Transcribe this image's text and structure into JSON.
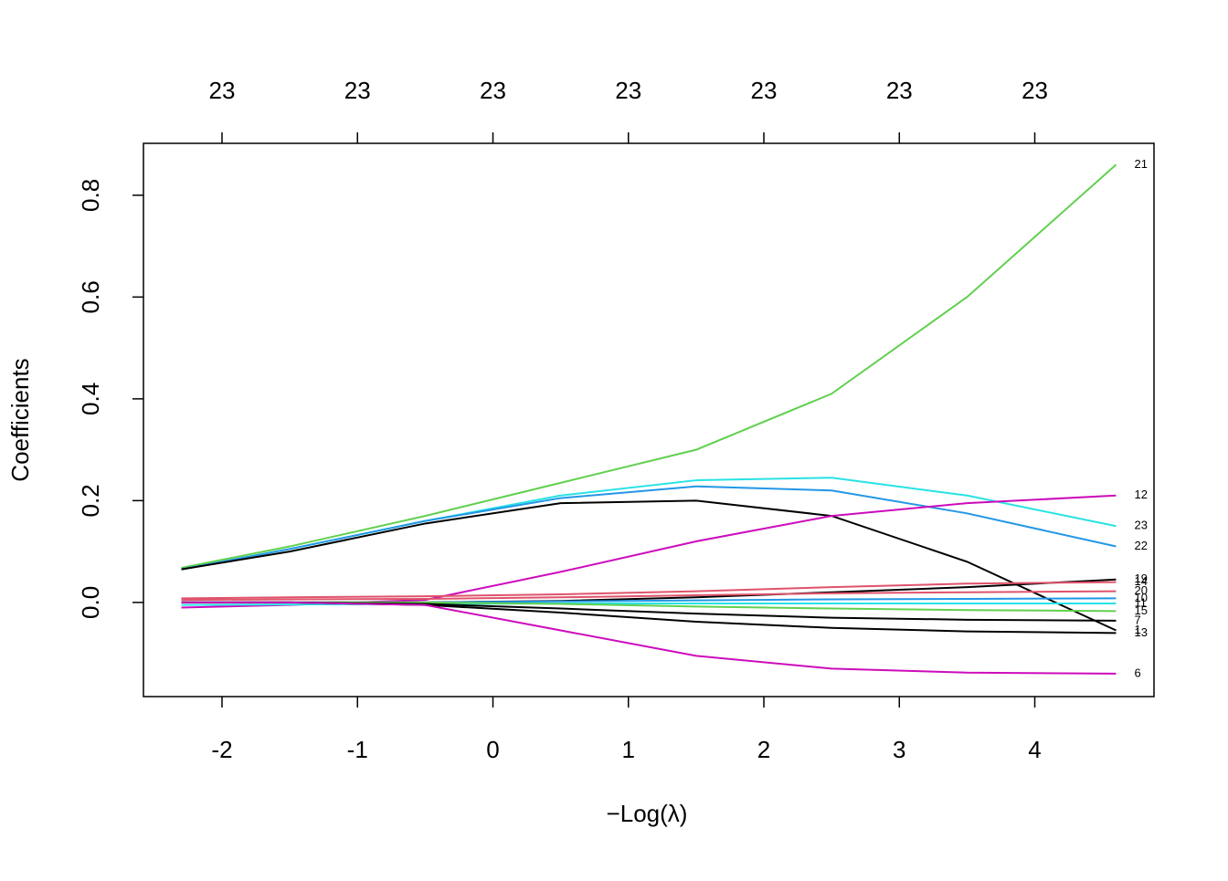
{
  "chart_data": {
    "type": "line",
    "xlabel": "−Log(λ)",
    "ylabel": "Coefficients",
    "x": [
      -2.3,
      -1.5,
      -0.5,
      0.5,
      1.5,
      2.5,
      3.5,
      4.6
    ],
    "series": [
      {
        "name": "21",
        "color": "#61D04F",
        "values": [
          0.068,
          0.11,
          0.17,
          0.235,
          0.3,
          0.41,
          0.6,
          0.86
        ]
      },
      {
        "name": "23",
        "color": "#28E2E5",
        "values": [
          0.065,
          0.105,
          0.16,
          0.21,
          0.24,
          0.245,
          0.21,
          0.15
        ]
      },
      {
        "name": "22",
        "color": "#2297E6",
        "values": [
          0.065,
          0.105,
          0.16,
          0.205,
          0.228,
          0.22,
          0.175,
          0.11
        ]
      },
      {
        "name": "1",
        "color": "#000000",
        "values": [
          0.065,
          0.1,
          0.155,
          0.195,
          0.2,
          0.17,
          0.08,
          -0.055
        ]
      },
      {
        "name": "12",
        "color": "#CD0BBC",
        "values": [
          -0.01,
          -0.005,
          0.005,
          0.06,
          0.12,
          0.17,
          0.195,
          0.21
        ]
      },
      {
        "name": "19",
        "color": "#000000",
        "values": [
          0,
          0,
          0,
          0.003,
          0.01,
          0.02,
          0.03,
          0.045
        ]
      },
      {
        "name": "14",
        "color": "#DF536B",
        "values": [
          0.008,
          0.01,
          0.012,
          0.016,
          0.022,
          0.03,
          0.037,
          0.04
        ]
      },
      {
        "name": "20",
        "color": "#DF536B",
        "values": [
          0.005,
          0.006,
          0.007,
          0.01,
          0.014,
          0.018,
          0.02,
          0.022
        ]
      },
      {
        "name": "10",
        "color": "#2297E6",
        "values": [
          0,
          0,
          0,
          0.002,
          0.004,
          0.006,
          0.007,
          0.008
        ]
      },
      {
        "name": "11",
        "color": "#28E2E5",
        "values": [
          -0.005,
          -0.004,
          -0.003,
          -0.002,
          -0.002,
          -0.002,
          -0.002,
          -0.002
        ]
      },
      {
        "name": "15",
        "color": "#61D04F",
        "values": [
          0,
          0,
          0,
          -0.003,
          -0.008,
          -0.012,
          -0.015,
          -0.017
        ]
      },
      {
        "name": "7",
        "color": "#000000",
        "values": [
          0,
          0,
          -0.003,
          -0.012,
          -0.022,
          -0.03,
          -0.034,
          -0.036
        ]
      },
      {
        "name": "13",
        "color": "#000000",
        "values": [
          0,
          0,
          -0.005,
          -0.02,
          -0.038,
          -0.05,
          -0.057,
          -0.06
        ]
      },
      {
        "name": "6",
        "color": "#CD0BBC",
        "values": [
          0,
          0,
          -0.005,
          -0.055,
          -0.105,
          -0.13,
          -0.138,
          -0.14
        ]
      }
    ],
    "xlim": [
      -2.58,
      4.88
    ],
    "ylim": [
      -0.185,
      0.902
    ],
    "xticks": [
      -2,
      -1,
      0,
      1,
      2,
      3,
      4
    ],
    "top_xticks": [
      {
        "value": -2,
        "label": "23"
      },
      {
        "value": -1,
        "label": "23"
      },
      {
        "value": 0,
        "label": "23"
      },
      {
        "value": 1,
        "label": "23"
      },
      {
        "value": 2,
        "label": "23"
      },
      {
        "value": 3,
        "label": "23"
      },
      {
        "value": 4,
        "label": "23"
      }
    ],
    "yticks": [
      {
        "value": 0,
        "label": "0.0"
      },
      0.2,
      0.4,
      0.6,
      0.8
    ],
    "grid": false
  }
}
